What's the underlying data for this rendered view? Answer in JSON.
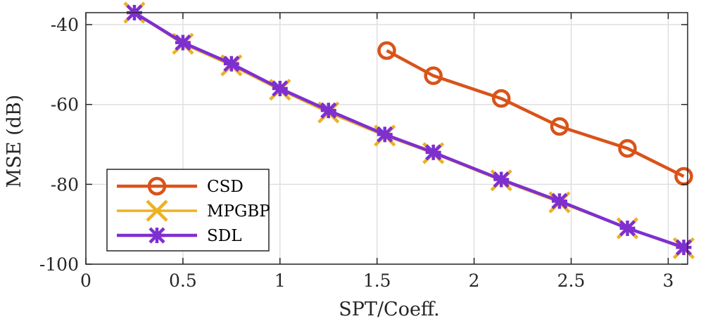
{
  "chart_data": {
    "type": "line",
    "title": "",
    "xlabel": "SPT/Coeff.",
    "ylabel": "MSE (dB)",
    "xlim": [
      0,
      3.1
    ],
    "ylim": [
      -100,
      -37
    ],
    "grid": true,
    "legend_position": "bottom-left",
    "xticks": [
      0,
      0.5,
      1,
      1.5,
      2,
      2.5,
      3
    ],
    "xtick_labels": [
      "0",
      "0.5",
      "1",
      "1.5",
      "2",
      "2.5",
      "3"
    ],
    "yticks": [
      -100,
      -80,
      -60,
      -40
    ],
    "ytick_labels": [
      "-100",
      "-80",
      "-60",
      "-40"
    ],
    "series": [
      {
        "name": "CSD",
        "color": "#d95319",
        "marker": "circle",
        "x": [
          1.55,
          1.79,
          2.14,
          2.44,
          2.79,
          3.08
        ],
        "y": [
          -46.5,
          -52.8,
          -58.5,
          -65.5,
          -71,
          -78
        ]
      },
      {
        "name": "MPGBP",
        "color": "#edb120",
        "marker": "x",
        "x": [
          0.25,
          0.5,
          0.75,
          1.0,
          1.25,
          1.54,
          1.79,
          2.14,
          2.44,
          2.79,
          3.08
        ],
        "y": [
          -37,
          -44.8,
          -50.2,
          -56.3,
          -62,
          -67.8,
          -72.2,
          -79,
          -84.5,
          -91,
          -96
        ]
      },
      {
        "name": "SDL",
        "color": "#7e2fd0",
        "marker": "asterisk",
        "x": [
          0.25,
          0.5,
          0.75,
          1.0,
          1.25,
          1.54,
          1.79,
          2.14,
          2.44,
          2.79,
          3.08
        ],
        "y": [
          -37,
          -44.5,
          -49.8,
          -56,
          -61.5,
          -67.5,
          -72,
          -78.8,
          -84.2,
          -91,
          -95.8
        ]
      }
    ]
  }
}
